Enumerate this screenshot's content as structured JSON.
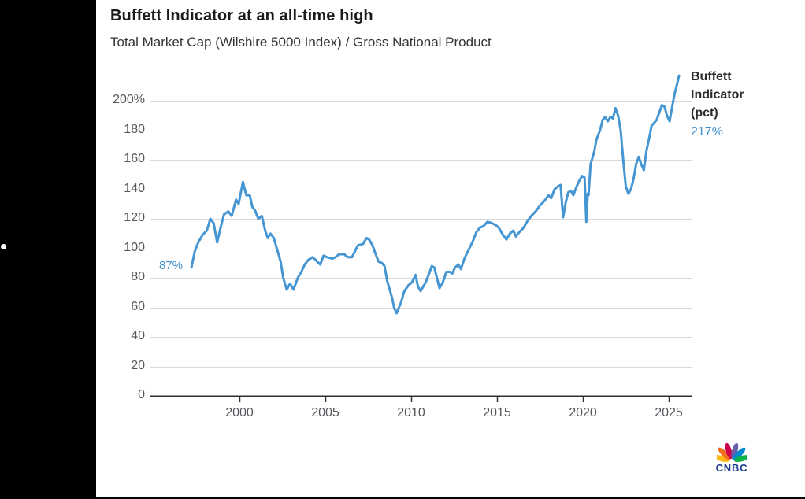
{
  "page": {
    "background_color": "#000000",
    "card_color": "#ffffff"
  },
  "chart": {
    "title": "Buffett Indicator at an all-time high",
    "subtitle": "Total Market Cap (Wilshire 5000 Index) / Gross National Product",
    "start_label": "87%",
    "legend_title": "Buffett Indicator (pct)",
    "legend_value": "217%",
    "line_color": "#4596d3",
    "accent_blue": "#4191cf",
    "gridline_color": "#d9d9d9",
    "axis_color": "#2f2f2f",
    "tick_label_color": "#54575c"
  },
  "chart_data": {
    "type": "line",
    "title": "Buffett Indicator at an all-time high",
    "subtitle": "Total Market Cap (Wilshire 5000 Index) / Gross National Product",
    "xlabel": "",
    "ylabel": "",
    "xlim": [
      1994.77,
      2026.33
    ],
    "ylim": [
      0,
      217.6
    ],
    "grid": "horizontal",
    "legend_position": "right-of-line-end",
    "xticks": [
      {
        "v": 2000,
        "label": "2000"
      },
      {
        "v": 2005,
        "label": "2005"
      },
      {
        "v": 2010,
        "label": "2010"
      },
      {
        "v": 2015,
        "label": "2015"
      },
      {
        "v": 2020,
        "label": "2020"
      },
      {
        "v": 2025,
        "label": "2025"
      }
    ],
    "yticks": [
      {
        "v": 200,
        "label": "200%"
      },
      {
        "v": 180,
        "label": "180"
      },
      {
        "v": 160,
        "label": "160"
      },
      {
        "v": 140,
        "label": "140"
      },
      {
        "v": 120,
        "label": "120"
      },
      {
        "v": 100,
        "label": "100"
      },
      {
        "v": 80,
        "label": "80"
      },
      {
        "v": 60,
        "label": "60"
      },
      {
        "v": 40,
        "label": "40"
      },
      {
        "v": 20,
        "label": "20"
      },
      {
        "v": 0,
        "label": "0"
      }
    ],
    "series": [
      {
        "name": "Buffett Indicator (pct)",
        "first_value_pct": 87,
        "last_value_pct": 217,
        "points": [
          [
            1997.2,
            87
          ],
          [
            1997.4,
            98
          ],
          [
            1997.6,
            104
          ],
          [
            1997.85,
            109
          ],
          [
            1998.1,
            112
          ],
          [
            1998.3,
            120
          ],
          [
            1998.5,
            117
          ],
          [
            1998.7,
            104
          ],
          [
            1998.9,
            114
          ],
          [
            1999.1,
            123
          ],
          [
            1999.35,
            125
          ],
          [
            1999.55,
            122
          ],
          [
            1999.8,
            133
          ],
          [
            1999.95,
            130
          ],
          [
            2000.2,
            145
          ],
          [
            2000.4,
            136
          ],
          [
            2000.6,
            136
          ],
          [
            2000.75,
            128
          ],
          [
            2000.9,
            126
          ],
          [
            2001.1,
            120
          ],
          [
            2001.3,
            122
          ],
          [
            2001.5,
            112
          ],
          [
            2001.65,
            107
          ],
          [
            2001.8,
            110
          ],
          [
            2002.0,
            107
          ],
          [
            2002.2,
            99
          ],
          [
            2002.4,
            91
          ],
          [
            2002.55,
            80
          ],
          [
            2002.75,
            72
          ],
          [
            2002.95,
            76
          ],
          [
            2003.15,
            72
          ],
          [
            2003.4,
            80
          ],
          [
            2003.6,
            84
          ],
          [
            2003.8,
            89
          ],
          [
            2004.0,
            92
          ],
          [
            2004.25,
            94
          ],
          [
            2004.45,
            92
          ],
          [
            2004.7,
            89
          ],
          [
            2004.9,
            95
          ],
          [
            2005.1,
            94
          ],
          [
            2005.4,
            93
          ],
          [
            2005.6,
            94
          ],
          [
            2005.8,
            96
          ],
          [
            2006.1,
            96
          ],
          [
            2006.3,
            94
          ],
          [
            2006.55,
            94
          ],
          [
            2006.9,
            102
          ],
          [
            2007.2,
            103
          ],
          [
            2007.4,
            107
          ],
          [
            2007.55,
            106
          ],
          [
            2007.75,
            102
          ],
          [
            2007.9,
            97
          ],
          [
            2008.1,
            91
          ],
          [
            2008.3,
            90
          ],
          [
            2008.45,
            88
          ],
          [
            2008.6,
            78
          ],
          [
            2008.75,
            72
          ],
          [
            2008.9,
            66
          ],
          [
            2009.0,
            60
          ],
          [
            2009.15,
            56
          ],
          [
            2009.4,
            63
          ],
          [
            2009.6,
            71
          ],
          [
            2009.85,
            75
          ],
          [
            2010.05,
            77
          ],
          [
            2010.25,
            82
          ],
          [
            2010.4,
            74
          ],
          [
            2010.55,
            71
          ],
          [
            2010.85,
            77
          ],
          [
            2011.05,
            83
          ],
          [
            2011.2,
            88
          ],
          [
            2011.35,
            87
          ],
          [
            2011.5,
            80
          ],
          [
            2011.65,
            73
          ],
          [
            2011.85,
            77
          ],
          [
            2012.05,
            84
          ],
          [
            2012.25,
            84
          ],
          [
            2012.4,
            83
          ],
          [
            2012.55,
            87
          ],
          [
            2012.75,
            89
          ],
          [
            2012.9,
            86
          ],
          [
            2013.1,
            93
          ],
          [
            2013.35,
            99
          ],
          [
            2013.6,
            105
          ],
          [
            2013.8,
            111
          ],
          [
            2014.0,
            114
          ],
          [
            2014.2,
            115
          ],
          [
            2014.45,
            118
          ],
          [
            2014.7,
            117
          ],
          [
            2014.9,
            116
          ],
          [
            2015.1,
            114
          ],
          [
            2015.35,
            109
          ],
          [
            2015.55,
            106
          ],
          [
            2015.75,
            110
          ],
          [
            2015.95,
            112
          ],
          [
            2016.1,
            108
          ],
          [
            2016.3,
            111
          ],
          [
            2016.55,
            114
          ],
          [
            2016.8,
            119
          ],
          [
            2017.0,
            122
          ],
          [
            2017.25,
            125
          ],
          [
            2017.5,
            129
          ],
          [
            2017.75,
            132
          ],
          [
            2018.0,
            136
          ],
          [
            2018.15,
            134
          ],
          [
            2018.35,
            140
          ],
          [
            2018.55,
            142
          ],
          [
            2018.7,
            143
          ],
          [
            2018.85,
            121
          ],
          [
            2019.0,
            131
          ],
          [
            2019.15,
            138
          ],
          [
            2019.3,
            139
          ],
          [
            2019.45,
            136
          ],
          [
            2019.6,
            141
          ],
          [
            2019.8,
            146
          ],
          [
            2019.95,
            149
          ],
          [
            2020.1,
            148
          ],
          [
            2020.2,
            118
          ],
          [
            2020.28,
            137
          ],
          [
            2020.33,
            136
          ],
          [
            2020.45,
            157
          ],
          [
            2020.65,
            165
          ],
          [
            2020.8,
            174
          ],
          [
            2021.0,
            180
          ],
          [
            2021.15,
            187
          ],
          [
            2021.3,
            189
          ],
          [
            2021.45,
            186
          ],
          [
            2021.6,
            189
          ],
          [
            2021.75,
            188
          ],
          [
            2021.9,
            195
          ],
          [
            2022.05,
            190
          ],
          [
            2022.2,
            180
          ],
          [
            2022.35,
            160
          ],
          [
            2022.5,
            142
          ],
          [
            2022.65,
            137
          ],
          [
            2022.8,
            140
          ],
          [
            2022.95,
            147
          ],
          [
            2023.1,
            157
          ],
          [
            2023.25,
            162
          ],
          [
            2023.4,
            157
          ],
          [
            2023.55,
            153
          ],
          [
            2023.7,
            166
          ],
          [
            2023.85,
            174
          ],
          [
            2024.0,
            183
          ],
          [
            2024.15,
            185
          ],
          [
            2024.3,
            187
          ],
          [
            2024.45,
            192
          ],
          [
            2024.6,
            197
          ],
          [
            2024.75,
            196
          ],
          [
            2024.9,
            190
          ],
          [
            2025.05,
            186
          ],
          [
            2025.2,
            196
          ],
          [
            2025.35,
            205
          ],
          [
            2025.5,
            212
          ],
          [
            2025.6,
            217
          ]
        ]
      }
    ]
  },
  "logo": {
    "text": "CNBC",
    "text_color": "#1d3c92",
    "feather_colors": [
      "#fcb711",
      "#f37021",
      "#cc004c",
      "#6460aa",
      "#0089d0",
      "#0db14b"
    ]
  }
}
